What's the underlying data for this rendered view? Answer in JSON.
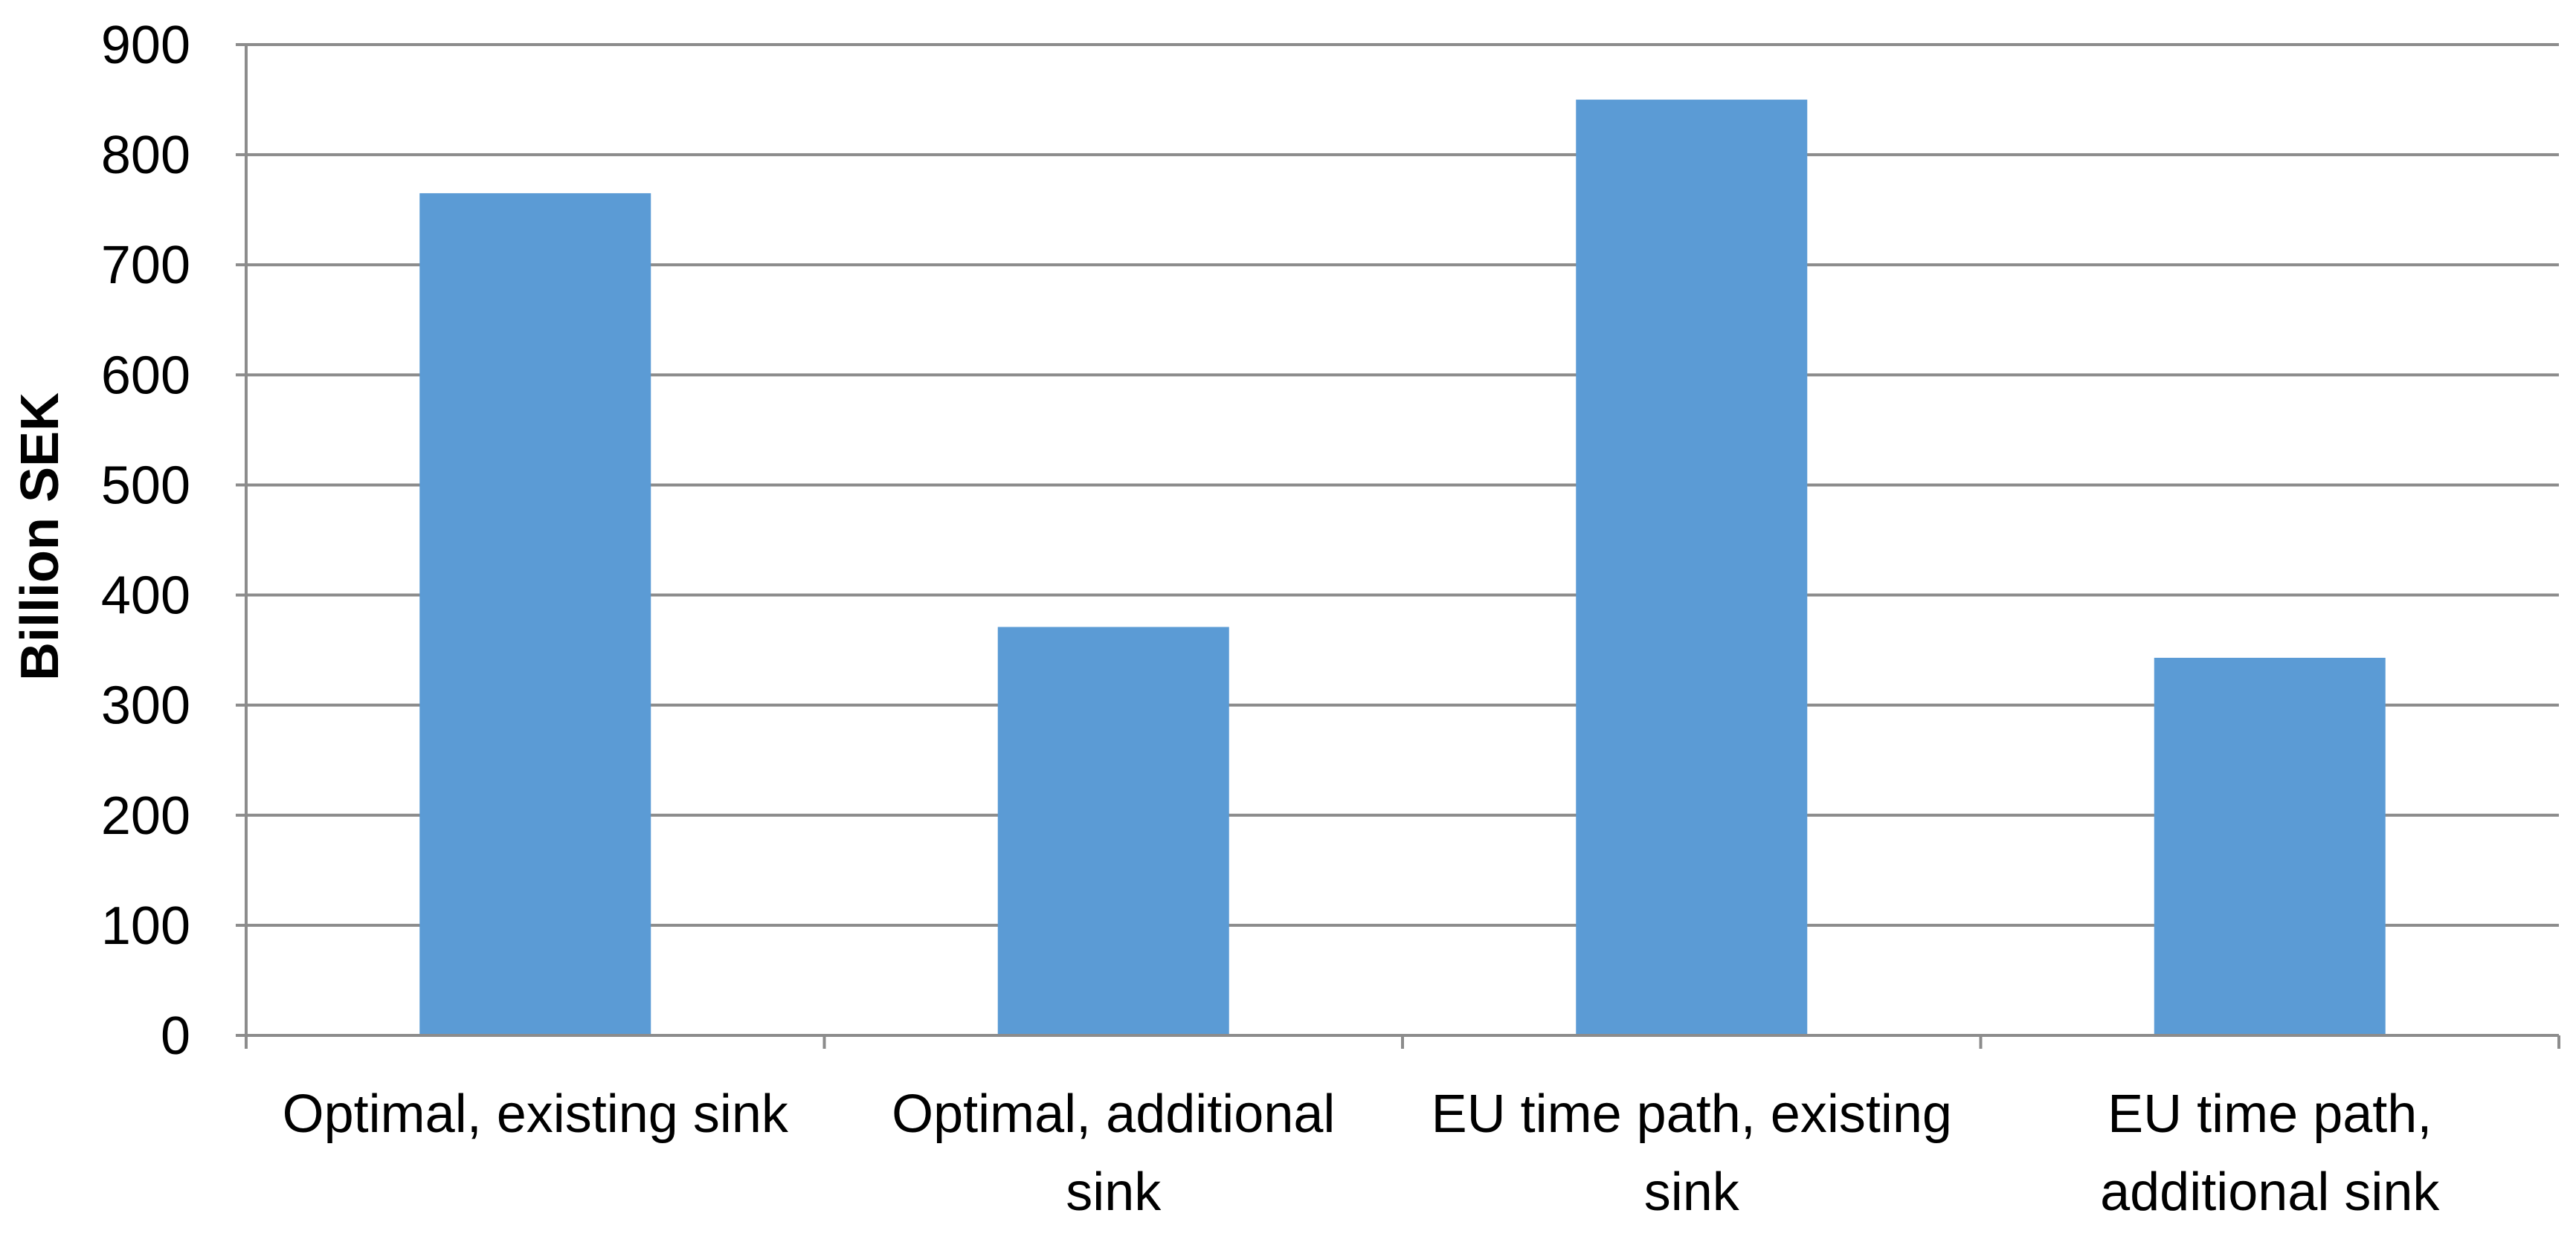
{
  "chart_data": {
    "type": "bar",
    "title": "",
    "xlabel": "",
    "ylabel": "Billion SEK",
    "categories": [
      [
        "Optimal, existing sink"
      ],
      [
        "Optimal, additional",
        "sink"
      ],
      [
        "EU time path, existing",
        "sink"
      ],
      [
        "EU time path,",
        "additional sink"
      ]
    ],
    "values": [
      765,
      371,
      850,
      343
    ],
    "ylim": [
      0,
      900
    ],
    "yticks": [
      0,
      100,
      200,
      300,
      400,
      500,
      600,
      700,
      800,
      900
    ],
    "grid": true,
    "legend": "none",
    "colors": {
      "bar": "#5b9bd5",
      "grid": "#8c8c8c",
      "axis": "#8c8c8c"
    }
  }
}
